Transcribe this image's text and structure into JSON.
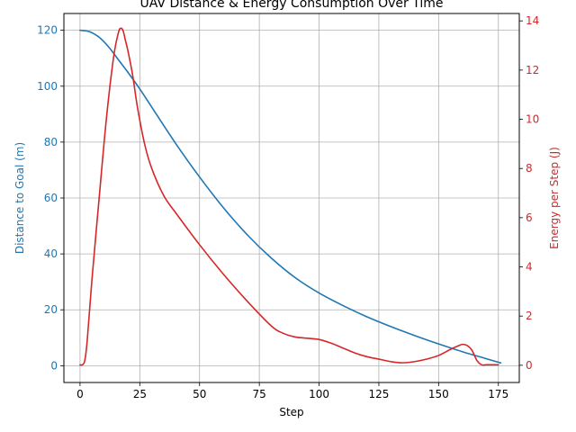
{
  "chart_data": {
    "type": "line",
    "title": "UAV Distance & Energy Consumption Over Time",
    "xlabel": "Step",
    "xlim": [
      -6.75,
      183.75
    ],
    "x_ticks": [
      0,
      25,
      50,
      75,
      100,
      125,
      150,
      175
    ],
    "grid": true,
    "y_left": {
      "label": "Distance to Goal (m)",
      "ylim": [
        -6,
        126
      ],
      "ticks": [
        0,
        20,
        40,
        60,
        80,
        100,
        120
      ],
      "color": "#1f77b4"
    },
    "y_right": {
      "label": "Energy per Step (J)",
      "ylim": [
        -0.7,
        14.3
      ],
      "ticks": [
        0,
        2,
        4,
        6,
        8,
        10,
        12,
        14
      ],
      "color": "#d62728"
    },
    "series": [
      {
        "axis": "left",
        "color": "#1f77b4",
        "x": [
          0,
          4,
          8,
          12,
          16,
          20,
          25,
          30,
          40,
          50,
          60,
          70,
          80,
          90,
          100,
          110,
          120,
          130,
          140,
          150,
          160,
          170,
          176
        ],
        "y": [
          120,
          119.5,
          117.5,
          114,
          109.5,
          105,
          99,
          92.5,
          79.5,
          67.5,
          56.5,
          46.8,
          38.5,
          31.5,
          26,
          21.5,
          17.5,
          14,
          10.8,
          7.8,
          5,
          2.5,
          1
        ]
      },
      {
        "axis": "right",
        "color": "#d62728",
        "x": [
          0,
          1,
          2,
          3,
          5,
          8,
          11,
          14,
          16,
          17,
          18,
          19,
          20,
          22,
          24,
          27,
          30,
          35,
          40,
          50,
          60,
          70,
          80,
          85,
          90,
          95,
          100,
          105,
          110,
          115,
          120,
          125,
          130,
          135,
          140,
          145,
          150,
          155,
          158,
          160,
          162,
          164,
          166,
          168,
          170,
          175
        ],
        "y": [
          0.02,
          0.02,
          0.2,
          1.0,
          3.5,
          6.8,
          10.0,
          12.5,
          13.5,
          13.7,
          13.6,
          13.2,
          12.8,
          11.8,
          10.5,
          9.0,
          8.0,
          6.9,
          6.2,
          4.9,
          3.7,
          2.6,
          1.6,
          1.3,
          1.15,
          1.1,
          1.05,
          0.9,
          0.7,
          0.5,
          0.35,
          0.25,
          0.15,
          0.1,
          0.15,
          0.25,
          0.4,
          0.65,
          0.78,
          0.85,
          0.8,
          0.6,
          0.2,
          0.02,
          0.02,
          0.02
        ]
      }
    ]
  }
}
